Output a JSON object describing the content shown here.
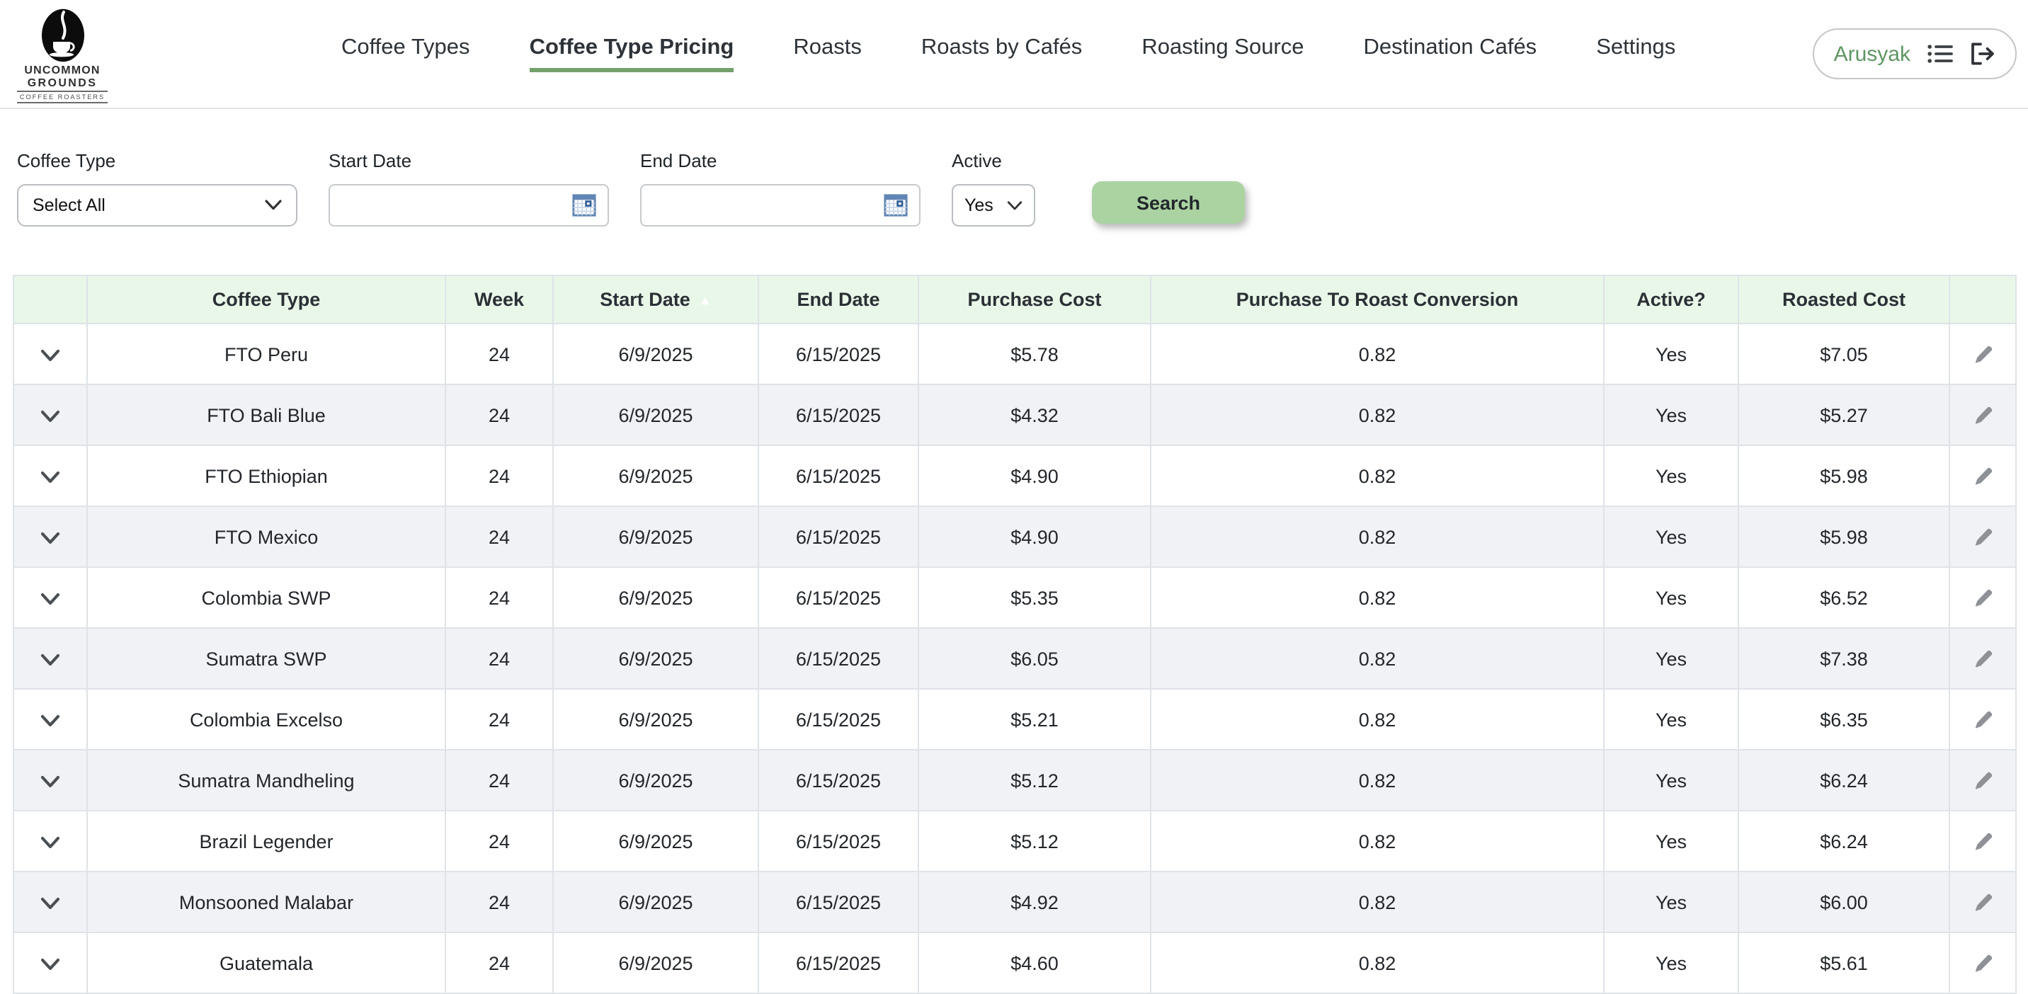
{
  "header": {
    "logo": {
      "line1": "UNCOMMON",
      "line2": "GROUNDS",
      "line3": "COFFEE ROASTERS"
    },
    "nav": [
      {
        "label": "Coffee Types",
        "active": false
      },
      {
        "label": "Coffee Type Pricing",
        "active": true
      },
      {
        "label": "Roasts",
        "active": false
      },
      {
        "label": "Roasts by Cafés",
        "active": false
      },
      {
        "label": "Roasting Source",
        "active": false
      },
      {
        "label": "Destination Cafés",
        "active": false
      },
      {
        "label": "Settings",
        "active": false
      }
    ],
    "user": {
      "name": "Arusyak"
    }
  },
  "filters": {
    "coffee_type": {
      "label": "Coffee Type",
      "value": "Select All"
    },
    "start_date": {
      "label": "Start Date",
      "value": ""
    },
    "end_date": {
      "label": "End Date",
      "value": ""
    },
    "active": {
      "label": "Active",
      "value": "Yes"
    },
    "search_label": "Search"
  },
  "table": {
    "columns": [
      "",
      "Coffee Type",
      "Week",
      "Start Date",
      "End Date",
      "Purchase Cost",
      "Purchase To Roast Conversion",
      "Active?",
      "Roasted Cost",
      ""
    ],
    "sort_column": "Start Date",
    "sort_direction": "asc",
    "rows": [
      {
        "coffee_type": "FTO Peru",
        "week": "24",
        "start_date": "6/9/2025",
        "end_date": "6/15/2025",
        "purchase_cost": "$5.78",
        "conversion": "0.82",
        "active": "Yes",
        "roasted_cost": "$7.05"
      },
      {
        "coffee_type": "FTO Bali Blue",
        "week": "24",
        "start_date": "6/9/2025",
        "end_date": "6/15/2025",
        "purchase_cost": "$4.32",
        "conversion": "0.82",
        "active": "Yes",
        "roasted_cost": "$5.27"
      },
      {
        "coffee_type": "FTO Ethiopian",
        "week": "24",
        "start_date": "6/9/2025",
        "end_date": "6/15/2025",
        "purchase_cost": "$4.90",
        "conversion": "0.82",
        "active": "Yes",
        "roasted_cost": "$5.98"
      },
      {
        "coffee_type": "FTO Mexico",
        "week": "24",
        "start_date": "6/9/2025",
        "end_date": "6/15/2025",
        "purchase_cost": "$4.90",
        "conversion": "0.82",
        "active": "Yes",
        "roasted_cost": "$5.98"
      },
      {
        "coffee_type": "Colombia SWP",
        "week": "24",
        "start_date": "6/9/2025",
        "end_date": "6/15/2025",
        "purchase_cost": "$5.35",
        "conversion": "0.82",
        "active": "Yes",
        "roasted_cost": "$6.52"
      },
      {
        "coffee_type": "Sumatra SWP",
        "week": "24",
        "start_date": "6/9/2025",
        "end_date": "6/15/2025",
        "purchase_cost": "$6.05",
        "conversion": "0.82",
        "active": "Yes",
        "roasted_cost": "$7.38"
      },
      {
        "coffee_type": "Colombia Excelso",
        "week": "24",
        "start_date": "6/9/2025",
        "end_date": "6/15/2025",
        "purchase_cost": "$5.21",
        "conversion": "0.82",
        "active": "Yes",
        "roasted_cost": "$6.35"
      },
      {
        "coffee_type": "Sumatra Mandheling",
        "week": "24",
        "start_date": "6/9/2025",
        "end_date": "6/15/2025",
        "purchase_cost": "$5.12",
        "conversion": "0.82",
        "active": "Yes",
        "roasted_cost": "$6.24"
      },
      {
        "coffee_type": "Brazil Legender",
        "week": "24",
        "start_date": "6/9/2025",
        "end_date": "6/15/2025",
        "purchase_cost": "$5.12",
        "conversion": "0.82",
        "active": "Yes",
        "roasted_cost": "$6.24"
      },
      {
        "coffee_type": "Monsooned Malabar",
        "week": "24",
        "start_date": "6/9/2025",
        "end_date": "6/15/2025",
        "purchase_cost": "$4.92",
        "conversion": "0.82",
        "active": "Yes",
        "roasted_cost": "$6.00"
      },
      {
        "coffee_type": "Guatemala",
        "week": "24",
        "start_date": "6/9/2025",
        "end_date": "6/15/2025",
        "purchase_cost": "$4.60",
        "conversion": "0.82",
        "active": "Yes",
        "roasted_cost": "$5.61"
      }
    ]
  },
  "colors": {
    "accent_green_underline": "#74a06c",
    "search_button_green": "#abd3a2",
    "table_header_green": "#e9f7e9",
    "alt_row_gray": "#f1f2f6",
    "user_name_green": "#5f9663",
    "calendar_icon_blue": "#6186b3"
  }
}
